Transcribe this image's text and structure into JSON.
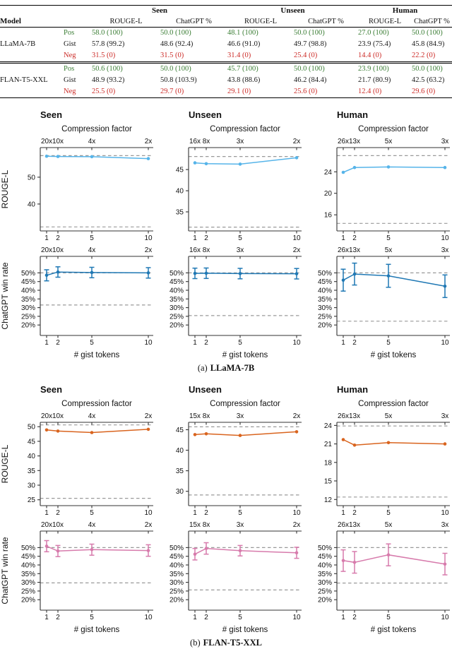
{
  "table": {
    "model_header": "Model",
    "groups": [
      "Seen",
      "Unseen",
      "Human"
    ],
    "subheaders": [
      "ROUGE-L",
      "ChatGPT %"
    ],
    "blocks": [
      {
        "model": "LLaMA-7B",
        "rows": [
          {
            "label": "Pos",
            "tone": "pos",
            "values": [
              "58.0 (100)",
              "50.0 (100)",
              "48.1 (100)",
              "50.0 (100)",
              "27.0 (100)",
              "50.0 (100)"
            ]
          },
          {
            "label": "Gist",
            "tone": "gist",
            "values": [
              "57.8 (99.2)",
              "48.6 (92.4)",
              "46.6 (91.0)",
              "49.7 (98.8)",
              "23.9 (75.4)",
              "45.8 (84.9)"
            ]
          },
          {
            "label": "Neg",
            "tone": "neg",
            "values": [
              "31.5 (0)",
              "31.5 (0)",
              "31.4 (0)",
              "25.4 (0)",
              "14.4 (0)",
              "22.2 (0)"
            ]
          }
        ]
      },
      {
        "model": "FLAN-T5-XXL",
        "rows": [
          {
            "label": "Pos",
            "tone": "pos",
            "values": [
              "50.6 (100)",
              "50.0 (100)",
              "45.7 (100)",
              "50.0 (100)",
              "23.9 (100)",
              "50.0 (100)"
            ]
          },
          {
            "label": "Gist",
            "tone": "gist",
            "values": [
              "48.9 (93.2)",
              "50.8 (103.9)",
              "43.8 (88.6)",
              "46.2 (84.4)",
              "21.7 (80.9)",
              "42.5 (63.2)"
            ]
          },
          {
            "label": "Neg",
            "tone": "neg",
            "values": [
              "25.5 (0)",
              "29.7 (0)",
              "29.1 (0)",
              "25.6 (0)",
              "12.4 (0)",
              "29.6 (0)"
            ]
          }
        ]
      }
    ]
  },
  "colors": {
    "pos": "#3A7D34",
    "neg": "#CC2B27",
    "gist": "#1a1a1a",
    "dashed": "#999999",
    "spine": "#333333",
    "rouge_llama": "#56B4E9",
    "win_llama": "#1F78B4",
    "rouge_flan": "#D9641E",
    "win_flan": "#D77BAC"
  },
  "chart_data": [
    {
      "id": "llama-7b",
      "caption_index": "(a)",
      "caption_model": "LLaMA-7B",
      "type": "line",
      "x": [
        1,
        2,
        5,
        10
      ],
      "xlabel": "# gist tokens",
      "top_axis_label": "Compression factor",
      "rows": [
        {
          "ylabel": "ROUGE-L",
          "type": "line",
          "color_key": "rouge_llama",
          "charts": [
            {
              "title": "Seen",
              "compression_ticks": [
                "20x",
                "10x",
                "4x",
                "2x"
              ],
              "ylim": [
                30,
                61
              ],
              "yticks": [
                40,
                50
              ],
              "percent": false,
              "values": [
                57.8,
                57.7,
                57.6,
                56.9
              ],
              "dashed_pos": 58.0,
              "dashed_neg": 31.5
            },
            {
              "title": "Unseen",
              "compression_ticks": [
                "16x",
                "8x",
                "3x",
                "2x"
              ],
              "ylim": [
                30.5,
                50.2
              ],
              "yticks": [
                35,
                40,
                45
              ],
              "percent": false,
              "values": [
                46.6,
                46.4,
                46.3,
                47.8
              ],
              "dashed_pos": 48.1,
              "dashed_neg": 31.4
            },
            {
              "title": "Human",
              "compression_ticks": [
                "26x",
                "13x",
                "5x",
                "3x"
              ],
              "ylim": [
                13,
                28.5
              ],
              "yticks": [
                16,
                20,
                24
              ],
              "percent": false,
              "values": [
                23.9,
                24.8,
                24.9,
                24.8
              ],
              "dashed_pos": 27.0,
              "dashed_neg": 14.4
            }
          ]
        },
        {
          "ylabel": "ChatGPT win rate",
          "type": "line-errorbar",
          "color_key": "win_llama",
          "charts": [
            {
              "compression_ticks": [
                "20x",
                "10x",
                "4x",
                "2x"
              ],
              "ylim": [
                14,
                59.5
              ],
              "yticks": [
                20,
                25,
                30,
                35,
                40,
                45,
                50
              ],
              "percent": true,
              "values": [
                48.6,
                50.5,
                50.2,
                50.0
              ],
              "errors": [
                3.2,
                3.0,
                3.0,
                3.0
              ],
              "dashed_pos": 50.0,
              "dashed_neg": 31.5
            },
            {
              "compression_ticks": [
                "16x",
                "8x",
                "3x",
                "2x"
              ],
              "ylim": [
                14,
                59.5
              ],
              "yticks": [
                20,
                25,
                30,
                35,
                40,
                45,
                50
              ],
              "percent": true,
              "values": [
                49.7,
                49.8,
                49.6,
                49.5
              ],
              "errors": [
                3.0,
                3.0,
                3.0,
                3.0
              ],
              "dashed_pos": 50.0,
              "dashed_neg": 25.4
            },
            {
              "compression_ticks": [
                "26x",
                "13x",
                "5x",
                "3x"
              ],
              "ylim": [
                14,
                59.5
              ],
              "yticks": [
                20,
                25,
                30,
                35,
                40,
                45,
                50
              ],
              "percent": true,
              "values": [
                45.8,
                49.3,
                48.3,
                42.3
              ],
              "errors": [
                6.3,
                6.3,
                6.6,
                6.5
              ],
              "dashed_pos": 50.0,
              "dashed_neg": 22.2
            }
          ]
        }
      ]
    },
    {
      "id": "flan-t5-xxl",
      "caption_index": "(b)",
      "caption_model": "FLAN-T5-XXL",
      "type": "line",
      "x": [
        1,
        2,
        5,
        10
      ],
      "xlabel": "# gist tokens",
      "top_axis_label": "Compression factor",
      "rows": [
        {
          "ylabel": "ROUGE-L",
          "type": "line",
          "color_key": "rouge_flan",
          "charts": [
            {
              "title": "Seen",
              "compression_ticks": [
                "20x",
                "10x",
                "4x",
                "2x"
              ],
              "ylim": [
                23,
                51.5
              ],
              "yticks": [
                25,
                30,
                35,
                40,
                45,
                50
              ],
              "percent": false,
              "values": [
                48.9,
                48.5,
                48.0,
                49.1
              ],
              "dashed_pos": 50.6,
              "dashed_neg": 25.5
            },
            {
              "title": "Unseen",
              "compression_ticks": [
                "15x",
                "8x",
                "3x",
                "2x"
              ],
              "ylim": [
                26.5,
                46.8
              ],
              "yticks": [
                30,
                35,
                40,
                45
              ],
              "percent": false,
              "values": [
                43.8,
                44.0,
                43.6,
                44.5
              ],
              "dashed_pos": 45.7,
              "dashed_neg": 29.1
            },
            {
              "title": "Human",
              "compression_ticks": [
                "26x",
                "13x",
                "5x",
                "3x"
              ],
              "ylim": [
                11,
                24.5
              ],
              "yticks": [
                12,
                15,
                18,
                21,
                24
              ],
              "percent": false,
              "values": [
                21.7,
                20.8,
                21.2,
                21.0
              ],
              "dashed_pos": 23.9,
              "dashed_neg": 12.4
            }
          ]
        },
        {
          "ylabel": "ChatGPT win rate",
          "type": "line-errorbar",
          "color_key": "win_flan",
          "charts": [
            {
              "compression_ticks": [
                "20x",
                "10x",
                "4x",
                "2x"
              ],
              "ylim": [
                14,
                59.5
              ],
              "yticks": [
                20,
                25,
                30,
                35,
                40,
                45,
                50
              ],
              "percent": true,
              "values": [
                50.8,
                48.0,
                48.8,
                48.3
              ],
              "errors": [
                3.2,
                3.2,
                3.2,
                3.3
              ],
              "dashed_pos": 50.0,
              "dashed_neg": 29.7
            },
            {
              "compression_ticks": [
                "15x",
                "8x",
                "3x",
                "2x"
              ],
              "ylim": [
                14,
                59.5
              ],
              "yticks": [
                20,
                25,
                30,
                35,
                40,
                45,
                50
              ],
              "percent": true,
              "values": [
                46.2,
                49.5,
                48.2,
                47.0
              ],
              "errors": [
                3.3,
                3.3,
                3.0,
                3.2
              ],
              "dashed_pos": 50.0,
              "dashed_neg": 25.6
            },
            {
              "compression_ticks": [
                "26x",
                "13x",
                "5x",
                "3x"
              ],
              "ylim": [
                14,
                59.5
              ],
              "yticks": [
                20,
                25,
                30,
                35,
                40,
                45,
                50
              ],
              "percent": true,
              "values": [
                42.5,
                41.5,
                45.8,
                40.5
              ],
              "errors": [
                6.2,
                6.2,
                6.3,
                6.2
              ],
              "dashed_pos": 50.0,
              "dashed_neg": 29.6
            }
          ]
        }
      ]
    }
  ]
}
